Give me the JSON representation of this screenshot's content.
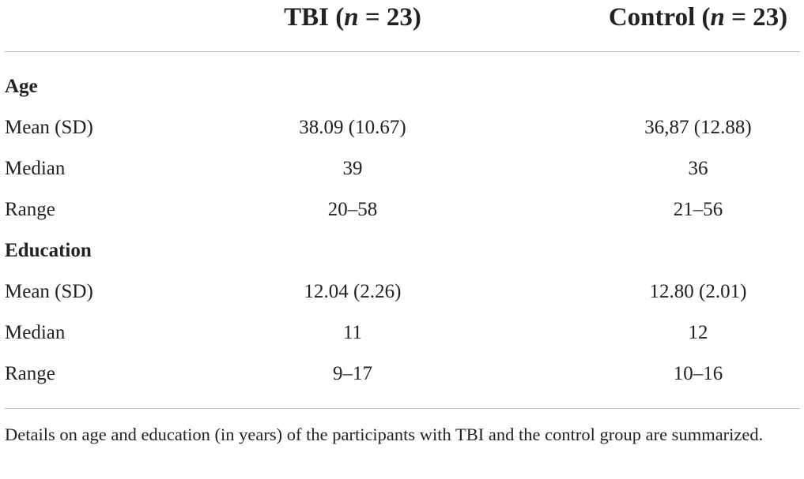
{
  "table": {
    "columns": [
      {
        "parts": [
          "TBI (",
          "n",
          " = 23)"
        ]
      },
      {
        "parts": [
          "Control (",
          "n",
          " = 23)"
        ]
      }
    ],
    "sections": [
      {
        "title": "Age",
        "rows": [
          [
            "Mean (SD)",
            "38.09 (10.67)",
            "36,87 (12.88)"
          ],
          [
            "Median",
            "39",
            "36"
          ],
          [
            "Range",
            "20–58",
            "21–56"
          ]
        ]
      },
      {
        "title": "Education",
        "rows": [
          [
            "Mean (SD)",
            "12.04 (2.26)",
            "12.80 (2.01)"
          ],
          [
            "Median",
            "11",
            "12"
          ],
          [
            "Range",
            "9–17",
            "10–16"
          ]
        ]
      }
    ],
    "footnote": "Details on age and education (in years) of the participants with TBI and the control group are summarized."
  }
}
